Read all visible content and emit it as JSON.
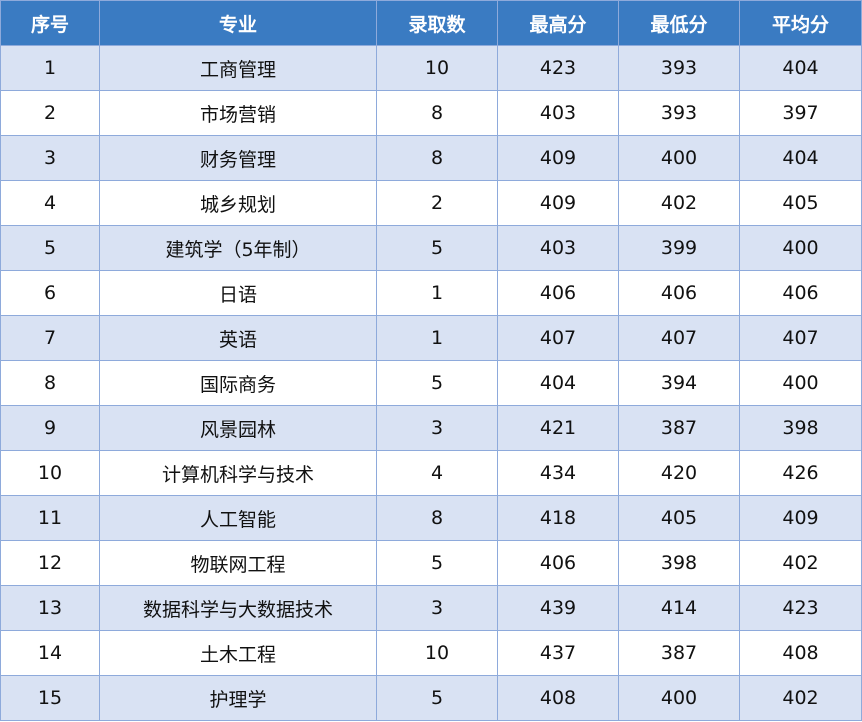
{
  "table": {
    "header": [
      "序号",
      "专业",
      "录取数",
      "最高分",
      "最低分",
      "平均分"
    ],
    "rows": [
      [
        "1",
        "工商管理",
        "10",
        "423",
        "393",
        "404"
      ],
      [
        "2",
        "市场营销",
        "8",
        "403",
        "393",
        "397"
      ],
      [
        "3",
        "财务管理",
        "8",
        "409",
        "400",
        "404"
      ],
      [
        "4",
        "城乡规划",
        "2",
        "409",
        "402",
        "405"
      ],
      [
        "5",
        "建筑学（5年制）",
        "5",
        "403",
        "399",
        "400"
      ],
      [
        "6",
        "日语",
        "1",
        "406",
        "406",
        "406"
      ],
      [
        "7",
        "英语",
        "1",
        "407",
        "407",
        "407"
      ],
      [
        "8",
        "国际商务",
        "5",
        "404",
        "394",
        "400"
      ],
      [
        "9",
        "风景园林",
        "3",
        "421",
        "387",
        "398"
      ],
      [
        "10",
        "计算机科学与技术",
        "4",
        "434",
        "420",
        "426"
      ],
      [
        "11",
        "人工智能",
        "8",
        "418",
        "405",
        "409"
      ],
      [
        "12",
        "物联网工程",
        "5",
        "406",
        "398",
        "402"
      ],
      [
        "13",
        "数据科学与大数据技术",
        "3",
        "439",
        "414",
        "423"
      ],
      [
        "14",
        "土木工程",
        "10",
        "437",
        "387",
        "408"
      ],
      [
        "15",
        "护理学",
        "5",
        "408",
        "400",
        "402"
      ]
    ]
  }
}
